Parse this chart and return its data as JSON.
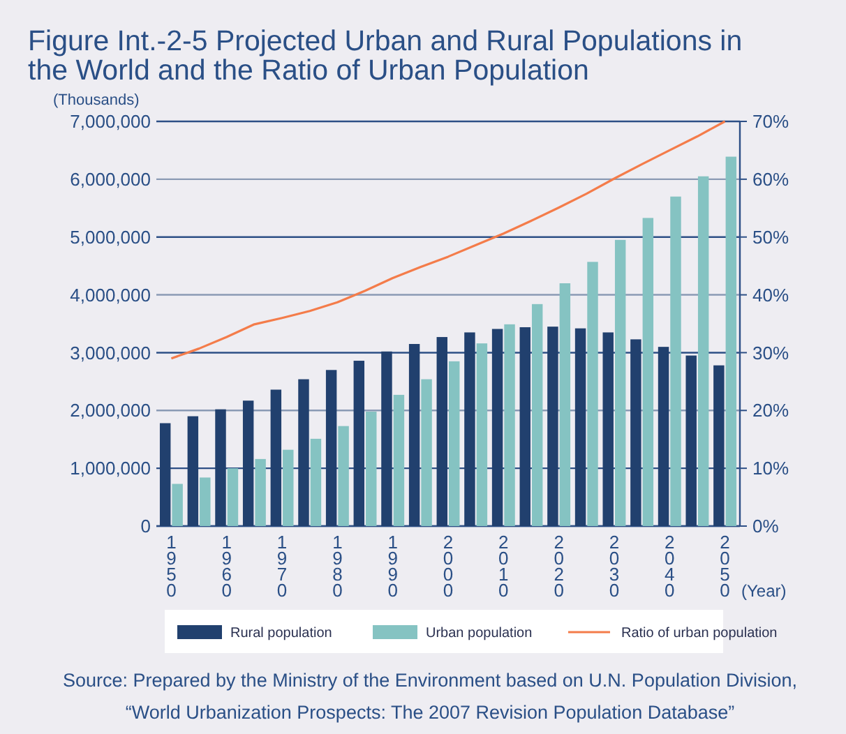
{
  "chart_data": {
    "type": "bar",
    "title": "Figure Int.-2-5 Projected Urban and Rural Populations in the World and the Ratio of Urban Population",
    "ylabel": "(Thousands)",
    "xlabel": "(Year)",
    "annotations": [
      "Source: Prepared by the Ministry of the Environment based on U.N. Population Division,",
      "“World Urbanization Prospects: The 2007 Revision Population Database”"
    ],
    "categories": [
      "1950",
      null,
      "1960",
      null,
      "1970",
      null,
      "1980",
      null,
      "1990",
      null,
      "2000",
      null,
      "2010",
      null,
      "2020",
      null,
      "2030",
      null,
      "2040",
      null,
      "2050"
    ],
    "series": [
      {
        "name": "Rural population",
        "color": "#21406e",
        "values": [
          1780000,
          1900000,
          2020000,
          2170000,
          2360000,
          2540000,
          2700000,
          2860000,
          3020000,
          3150000,
          3270000,
          3350000,
          3410000,
          3440000,
          3450000,
          3420000,
          3350000,
          3230000,
          3100000,
          2950000,
          2780000
        ]
      },
      {
        "name": "Urban population",
        "color": "#85c3c2",
        "values": [
          730000,
          840000,
          1000000,
          1160000,
          1320000,
          1510000,
          1730000,
          1980000,
          2270000,
          2540000,
          2850000,
          3160000,
          3490000,
          3840000,
          4200000,
          4570000,
          4950000,
          5330000,
          5700000,
          6050000,
          6390000
        ]
      },
      {
        "name": "Ratio of urban population",
        "type": "line",
        "axis": "y2",
        "color": "#f47c4a",
        "values": [
          29.0,
          30.7,
          32.7,
          34.9,
          36.0,
          37.2,
          38.7,
          40.7,
          42.9,
          44.8,
          46.6,
          48.6,
          50.6,
          52.8,
          55.1,
          57.5,
          60.1,
          62.6,
          65.0,
          67.4,
          70.0
        ]
      }
    ],
    "ylim": [
      0,
      7000000
    ],
    "yticks": [
      0,
      {
        "value": 1000000,
        "label": "1,000,000"
      },
      {
        "value": 2000000,
        "label": "2,000,000"
      },
      {
        "value": 3000000,
        "label": "3,000,000"
      },
      {
        "value": 4000000,
        "label": "4,000,000"
      },
      {
        "value": 5000000,
        "label": "5,000,000"
      },
      {
        "value": 6000000,
        "label": "6,000,000"
      },
      {
        "value": 7000000,
        "label": "7,000,000"
      }
    ],
    "y2lim": [
      0,
      70
    ],
    "y2ticks": [
      {
        "value": 0,
        "label": "0%"
      },
      {
        "value": 10,
        "label": "10%"
      },
      {
        "value": 20,
        "label": "20%"
      },
      {
        "value": 30,
        "label": "30%"
      },
      {
        "value": 40,
        "label": "40%"
      },
      {
        "value": 50,
        "label": "50%"
      },
      {
        "value": 60,
        "label": "60%"
      },
      {
        "value": 70,
        "label": "70%"
      }
    ],
    "grid": "y",
    "legend": "bottom",
    "marker": "none",
    "line_style": "solid"
  }
}
